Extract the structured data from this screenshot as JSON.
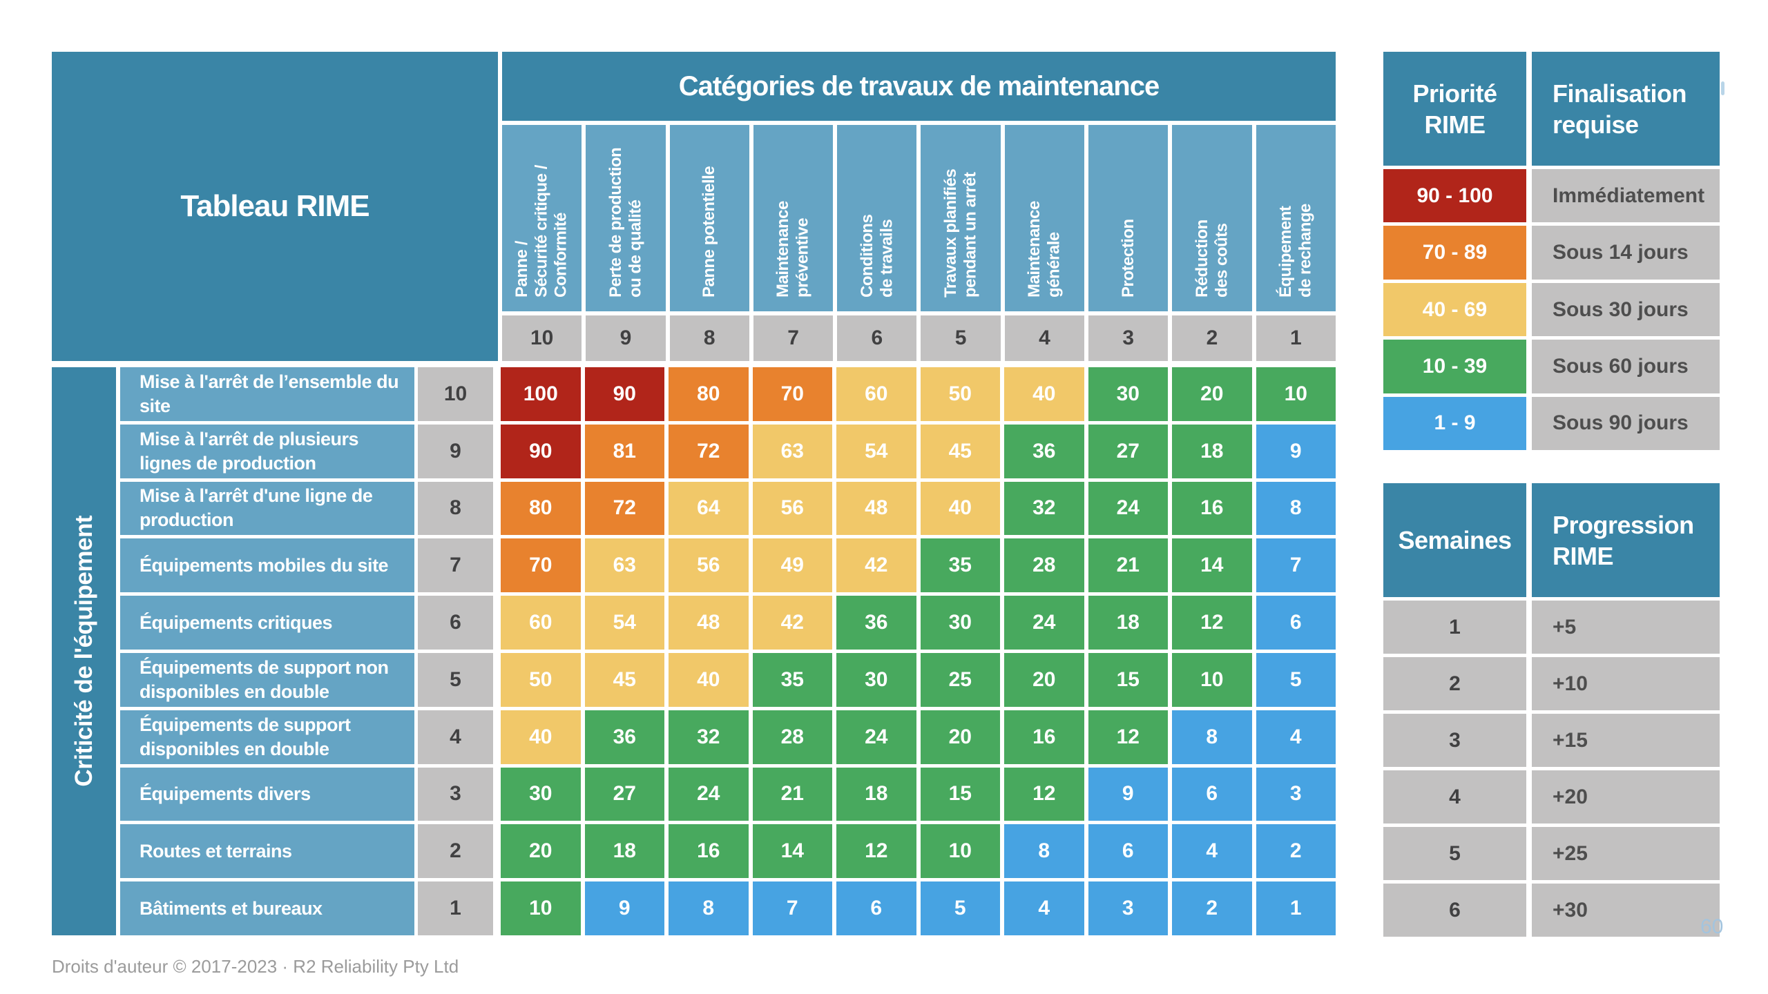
{
  "banner": {
    "text": "Catégories de travaux de maintenance"
  },
  "corner": {
    "title": "Tableau RIME"
  },
  "axis": {
    "y_title": "Criticité de l'équipement"
  },
  "chart_data": {
    "type": "heatmap",
    "title": "Tableau RIME",
    "column_group_title": "Catégories de travaux de maintenance",
    "row_group_title": "Criticité de l'équipement",
    "columns": [
      {
        "label": "Panne /\nSécurité critique /\nConformité",
        "weight": 10
      },
      {
        "label": "Perte de production\nou de qualité",
        "weight": 9
      },
      {
        "label": "Panne potentielle",
        "weight": 8
      },
      {
        "label": "Maintenance\npréventive",
        "weight": 7
      },
      {
        "label": "Conditions\nde travails",
        "weight": 6
      },
      {
        "label": "Travaux planifiés\npendant un arrêt",
        "weight": 5
      },
      {
        "label": "Maintenance\ngénérale",
        "weight": 4
      },
      {
        "label": "Protection",
        "weight": 3
      },
      {
        "label": "Réduction\ndes coûts",
        "weight": 2
      },
      {
        "label": "Équipement\nde rechange",
        "weight": 1
      }
    ],
    "rows": [
      {
        "label": "Mise à l'arrêt de l’ensemble du site",
        "criticality": 10,
        "values": [
          100,
          90,
          80,
          70,
          60,
          50,
          40,
          30,
          20,
          10
        ]
      },
      {
        "label": "Mise à l'arrêt de plusieurs lignes de production",
        "criticality": 9,
        "values": [
          90,
          81,
          72,
          63,
          54,
          45,
          36,
          27,
          18,
          9
        ]
      },
      {
        "label": "Mise à l'arrêt d'une ligne de production",
        "criticality": 8,
        "values": [
          80,
          72,
          64,
          56,
          48,
          40,
          32,
          24,
          16,
          8
        ]
      },
      {
        "label": "Équipements mobiles du site",
        "criticality": 7,
        "values": [
          70,
          63,
          56,
          49,
          42,
          35,
          28,
          21,
          14,
          7
        ]
      },
      {
        "label": "Équipements critiques",
        "criticality": 6,
        "values": [
          60,
          54,
          48,
          42,
          36,
          30,
          24,
          18,
          12,
          6
        ]
      },
      {
        "label": "Équipements de support non disponibles en double",
        "criticality": 5,
        "values": [
          50,
          45,
          40,
          35,
          30,
          25,
          20,
          15,
          10,
          5
        ]
      },
      {
        "label": "Équipements de support disponibles en double",
        "criticality": 4,
        "values": [
          40,
          36,
          32,
          28,
          24,
          20,
          16,
          12,
          8,
          4
        ]
      },
      {
        "label": "Équipements divers",
        "criticality": 3,
        "values": [
          30,
          27,
          24,
          21,
          18,
          15,
          12,
          9,
          6,
          3
        ]
      },
      {
        "label": "Routes et terrains",
        "criticality": 2,
        "values": [
          20,
          18,
          16,
          14,
          12,
          10,
          8,
          6,
          4,
          2
        ]
      },
      {
        "label": "Bâtiments et bureaux",
        "criticality": 1,
        "values": [
          10,
          9,
          8,
          7,
          6,
          5,
          4,
          3,
          2,
          1
        ]
      }
    ],
    "color_scale": [
      {
        "min": 90,
        "max": 100,
        "color": "#b1251a",
        "label": "90 - 100"
      },
      {
        "min": 70,
        "max": 89,
        "color": "#e8822e",
        "label": "70 - 89"
      },
      {
        "min": 40,
        "max": 69,
        "color": "#f1c869",
        "label": "40 - 69"
      },
      {
        "min": 10,
        "max": 39,
        "color": "#48a95e",
        "label": "10 - 39"
      },
      {
        "min": 1,
        "max": 9,
        "color": "#47a3e2",
        "label": "1 - 9"
      }
    ],
    "legend_position": "right",
    "grid": false
  },
  "priority_table": {
    "header_left": "Priorité RIME",
    "header_right": "Finalisation requise",
    "rows": [
      {
        "range": "90 - 100",
        "color": "#b1251a",
        "deadline": "Immédiatement"
      },
      {
        "range": "70 - 89",
        "color": "#e8822e",
        "deadline": "Sous 14 jours"
      },
      {
        "range": "40 - 69",
        "color": "#f1c869",
        "deadline": "Sous 30 jours"
      },
      {
        "range": "10 - 39",
        "color": "#48a95e",
        "deadline": "Sous 60 jours"
      },
      {
        "range": "1 - 9",
        "color": "#47a3e2",
        "deadline": "Sous 90 jours"
      }
    ]
  },
  "progression_table": {
    "header_left": "Semaines",
    "header_right": "Progression RIME",
    "rows": [
      {
        "weeks": "1",
        "value": "+5"
      },
      {
        "weeks": "2",
        "value": "+10"
      },
      {
        "weeks": "3",
        "value": "+15"
      },
      {
        "weeks": "4",
        "value": "+20"
      },
      {
        "weeks": "5",
        "value": "+25"
      },
      {
        "weeks": "6",
        "value": "+30"
      }
    ]
  },
  "footer": {
    "copyright": "Droits d'auteur © 2017-2023 · R2 Reliability Pty Ltd",
    "page_number": "60"
  },
  "colors": {
    "header_blue": "#3a85a6",
    "cell_blue": "#65a4c4",
    "gray_cell": "#c2c1c1",
    "red": "#b1251a",
    "orange": "#e8822e",
    "yellow": "#f1c869",
    "green": "#48a95e",
    "blue": "#47a3e2",
    "dark_text": "#414142",
    "footer_text": "#9b9b9b",
    "page_number_text": "#a3c4de"
  }
}
